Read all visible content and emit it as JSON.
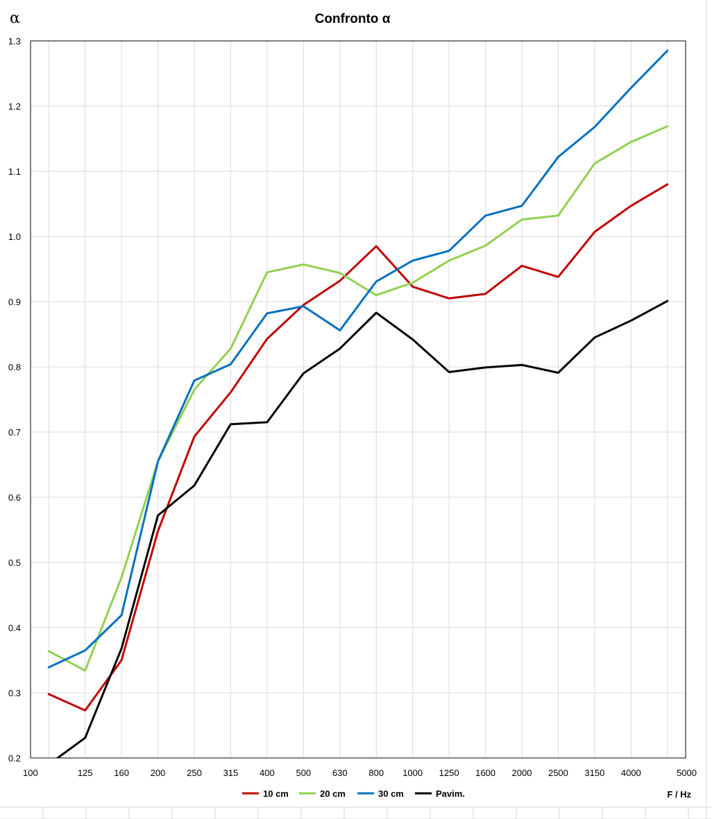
{
  "chart_data": {
    "type": "line",
    "title": "Confronto α",
    "ylabel": "α",
    "xlabel": "F  / Hz",
    "categories": [
      "100",
      "125",
      "160",
      "200",
      "250",
      "315",
      "400",
      "500",
      "630",
      "800",
      "1000",
      "1250",
      "1600",
      "2000",
      "2500",
      "3150",
      "4000",
      "5000"
    ],
    "ylim": [
      0.2,
      1.3
    ],
    "yticks": [
      0.2,
      0.3,
      0.4,
      0.5,
      0.6,
      0.7,
      0.8,
      0.9,
      1.0,
      1.1,
      1.2,
      1.3
    ],
    "ytick_labels": [
      "0.2",
      "0.3",
      "0.4",
      "0.5",
      "0.6",
      "0.7",
      "0.8",
      "0.9",
      "1.0",
      "1.1",
      "1.2",
      "1.3"
    ],
    "grid": true,
    "legend_position": "bottom",
    "series": [
      {
        "name": "10 cm",
        "color": "#C00000",
        "values": [
          0.298,
          0.273,
          0.35,
          0.548,
          0.693,
          0.761,
          0.843,
          0.895,
          0.932,
          0.985,
          0.923,
          0.905,
          0.912,
          0.955,
          0.938,
          1.007,
          1.047,
          1.08
        ]
      },
      {
        "name": "20 cm",
        "color": "#92D050",
        "values": [
          0.364,
          0.334,
          0.477,
          0.655,
          0.765,
          0.828,
          0.945,
          0.957,
          0.944,
          0.91,
          0.929,
          0.963,
          0.986,
          1.026,
          1.032,
          1.112,
          1.145,
          1.169
        ]
      },
      {
        "name": "30 cm",
        "color": "#0070C0",
        "values": [
          0.339,
          0.365,
          0.419,
          0.655,
          0.779,
          0.804,
          0.882,
          0.893,
          0.856,
          0.931,
          0.963,
          0.978,
          1.032,
          1.047,
          1.122,
          1.168,
          1.228,
          1.285
        ]
      },
      {
        "name": "Pavim.",
        "color": "#000000",
        "values": [
          0.19,
          0.231,
          0.368,
          0.572,
          0.618,
          0.712,
          0.715,
          0.79,
          0.828,
          0.883,
          0.842,
          0.792,
          0.799,
          0.803,
          0.791,
          0.845,
          0.871,
          0.901
        ]
      }
    ]
  }
}
